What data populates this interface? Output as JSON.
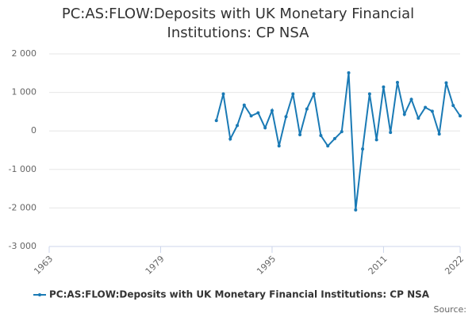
{
  "chart_data": {
    "type": "line",
    "title": "PC:AS:FLOW:Deposits with UK Monetary Financial Institutions: CP NSA",
    "x": [
      1987,
      1988,
      1989,
      1990,
      1991,
      1992,
      1993,
      1994,
      1995,
      1996,
      1997,
      1998,
      1999,
      2000,
      2001,
      2002,
      2003,
      2004,
      2005,
      2006,
      2007,
      2008,
      2009,
      2010,
      2011,
      2012,
      2013,
      2014,
      2015,
      2016,
      2017,
      2018,
      2019,
      2020,
      2021,
      2022
    ],
    "series": [
      {
        "name": "PC:AS:FLOW:Deposits with UK Monetary Financial Institutions: CP NSA",
        "color": "#1a7ab5",
        "values": [
          270,
          960,
          -210,
          140,
          670,
          390,
          470,
          80,
          530,
          -390,
          370,
          960,
          -100,
          570,
          960,
          -120,
          -390,
          -200,
          -20,
          1510,
          -2050,
          -470,
          960,
          -230,
          1140,
          -40,
          1260,
          430,
          820,
          330,
          610,
          510,
          -80,
          1250,
          660,
          390
        ]
      }
    ],
    "xlim": [
      1963,
      2022
    ],
    "xticks": [
      1963,
      1979,
      1995,
      2011,
      2022
    ],
    "ylim": [
      -3000,
      2000
    ],
    "yticks": [
      {
        "value": -3000,
        "label": "-3 000"
      },
      {
        "value": -2000,
        "label": "-2 000"
      },
      {
        "value": -1000,
        "label": "-1 000"
      },
      0,
      {
        "value": 1000,
        "label": "1 000"
      },
      {
        "value": 2000,
        "label": "2 000"
      }
    ],
    "grid": true,
    "legend": "bottom",
    "source": "Source:"
  }
}
